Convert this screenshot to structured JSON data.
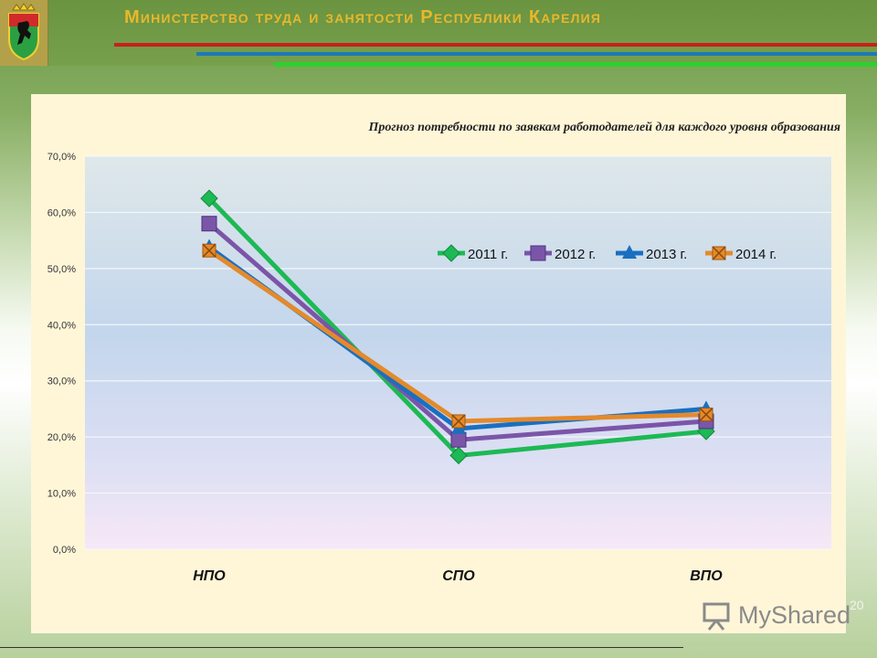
{
  "header": {
    "title": "Министерство труда и занятости Республики Карелия"
  },
  "colors": {
    "header_green": "#6f9a4a",
    "title_gold": "#e9b72a",
    "stripe_red": "#c8201e",
    "stripe_blue": "#1e78b8",
    "stripe_green": "#2fcf2f"
  },
  "page_number": "20",
  "watermark": {
    "text": "MyShared",
    "icon": "presentation-board-icon"
  },
  "emblem": {
    "icon": "karelia-coat-of-arms-icon"
  },
  "chart_data": {
    "type": "line",
    "title": "Прогноз потребности по заявкам работодателей для каждого уровня образования",
    "categories": [
      "НПО",
      "СПО",
      "ВПО"
    ],
    "ylim": [
      0,
      70
    ],
    "yticks": [
      "0,0%",
      "10,0%",
      "20,0%",
      "30,0%",
      "40,0%",
      "50,0%",
      "60,0%",
      "70,0%"
    ],
    "grid": true,
    "legend_position": "top-right",
    "series": [
      {
        "name": "2011 г.",
        "values": [
          62.5,
          16.7,
          21.0
        ],
        "color": "#1db954",
        "marker": "diamond"
      },
      {
        "name": "2012 г.",
        "values": [
          58.0,
          19.5,
          22.8
        ],
        "color": "#7b55a8",
        "marker": "square"
      },
      {
        "name": "2013 г.",
        "values": [
          53.8,
          21.5,
          25.0
        ],
        "color": "#1a6fc0",
        "marker": "triangle"
      },
      {
        "name": "2014 г.",
        "values": [
          53.2,
          22.8,
          24.0
        ],
        "color": "#e48a2a",
        "marker": "x"
      }
    ]
  }
}
